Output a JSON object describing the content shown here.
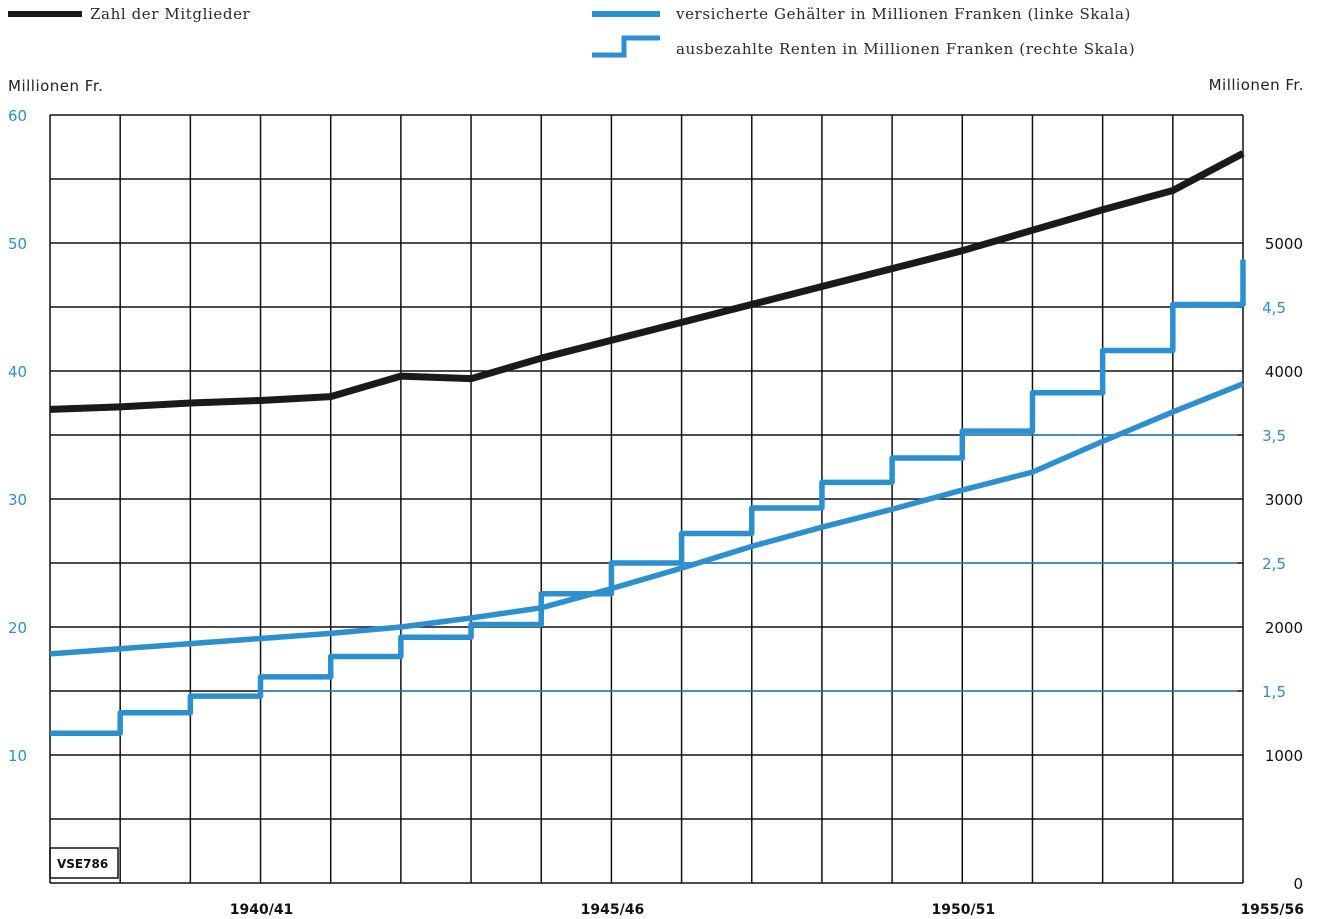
{
  "legend": {
    "members_label": "Zahl der Mitglieder",
    "salaries_label": "versicherte Gehälter in Millionen Franken (linke Skala)",
    "pensions_label": "ausbezahlte Renten in Millionen Franken (rechte Skala)"
  },
  "axes": {
    "left_unit": "Millionen Fr.",
    "right_unit": "Millionen Fr."
  },
  "code_label": "VSE786",
  "colors": {
    "black_series": "#1a1a1a",
    "blue_series": "#2b8fd0",
    "grid": "#111111"
  },
  "chart_data": {
    "type": "line",
    "x_tick_labels": [
      "1940/41",
      "1945/46",
      "1950/51",
      "1955/56"
    ],
    "x_tick_positions": [
      3,
      8,
      13,
      17
    ],
    "x_range": [
      0,
      17
    ],
    "left_axis": {
      "label": "Millionen Fr.",
      "ticks": [
        10,
        20,
        30,
        40,
        50,
        60
      ],
      "range": [
        0,
        60
      ]
    },
    "right_axis_black": {
      "label": "Millionen Fr.",
      "ticks": [
        "0",
        "1000",
        "2000",
        "3000",
        "4000",
        "5000"
      ],
      "values": [
        0,
        1000,
        2000,
        3000,
        4000,
        5000
      ],
      "range": [
        0,
        6000
      ]
    },
    "right_axis_blue": {
      "ticks": [
        "1,5",
        "2,5",
        "3,5",
        "4,5"
      ],
      "values": [
        1.5,
        2.5,
        3.5,
        4.5
      ]
    },
    "series": [
      {
        "name": "Zahl der Mitglieder",
        "axis": "right_black",
        "style": "line",
        "x": [
          0,
          1,
          2,
          3,
          4,
          5,
          6,
          7,
          8,
          9,
          10,
          11,
          12,
          13,
          14,
          15,
          16,
          17
        ],
        "values": [
          3700,
          3720,
          3750,
          3770,
          3800,
          3960,
          3940,
          4100,
          4240,
          4380,
          4520,
          4660,
          4800,
          4940,
          5100,
          5260,
          5410,
          5700
        ]
      },
      {
        "name": "versicherte Gehälter in Millionen Franken (linke Skala)",
        "axis": "left",
        "style": "line",
        "x": [
          0,
          1,
          2,
          3,
          4,
          5,
          6,
          7,
          8,
          9,
          10,
          11,
          12,
          13,
          14,
          15,
          16,
          17
        ],
        "values": [
          17.9,
          18.3,
          18.7,
          19.1,
          19.5,
          20.0,
          20.7,
          21.5,
          23.0,
          24.6,
          26.3,
          27.8,
          29.2,
          30.7,
          32.1,
          34.5,
          36.8,
          39.0
        ]
      },
      {
        "name": "ausbezahlte Renten in Millionen Franken (rechte Skala)",
        "axis": "left",
        "style": "step",
        "x": [
          0,
          1,
          2,
          3,
          4,
          5,
          6,
          7,
          8,
          9,
          10,
          11,
          12,
          13,
          14,
          15,
          16,
          17
        ],
        "values": [
          11.7,
          13.3,
          14.6,
          16.1,
          17.7,
          19.2,
          20.2,
          22.6,
          25.0,
          27.3,
          29.3,
          31.3,
          33.2,
          35.3,
          38.3,
          41.6,
          45.2,
          48.7
        ]
      }
    ],
    "reference_lines": [
      {
        "axis": "left",
        "value": 15.0,
        "from_x": 3
      },
      {
        "axis": "left",
        "value": 25.0,
        "from_x": 8
      },
      {
        "axis": "left",
        "value": 35.0,
        "from_x": 13
      },
      {
        "axis": "left",
        "value": 45.0,
        "from_x": 16
      }
    ],
    "grid": true
  }
}
